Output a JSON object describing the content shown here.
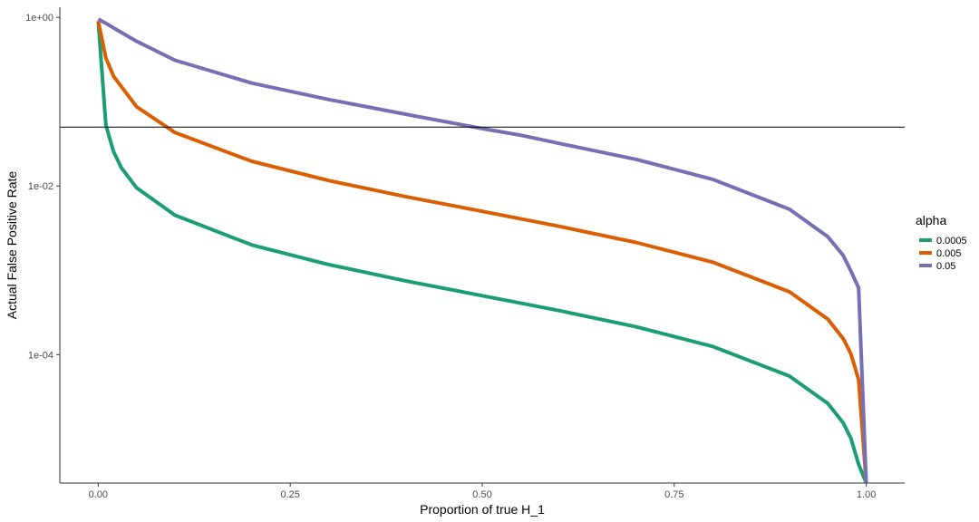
{
  "chart_data": {
    "type": "line",
    "title": "",
    "xlabel": "Proportion of true H_1",
    "ylabel": "Actual False Positive Rate",
    "x_scale": "linear",
    "y_scale": "log10",
    "xlim": [
      -0.05,
      1.05
    ],
    "ylim": [
      3e-06,
      1.0
    ],
    "x_ticks": [
      0.0,
      0.25,
      0.5,
      0.75,
      1.0
    ],
    "x_tick_labels": [
      "0.00",
      "0.25",
      "0.50",
      "0.75",
      "1.00"
    ],
    "y_ticks": [
      1.0,
      0.01,
      0.0001
    ],
    "y_tick_labels": [
      "1e+00",
      "1e-02",
      "1e-04"
    ],
    "grid": false,
    "hline": 0.05,
    "legend_title": "alpha",
    "legend_position": "right",
    "series": [
      {
        "name": "0.0005",
        "color": "#1b9e77",
        "x": [
          0,
          0.01,
          0.02,
          0.03,
          0.05,
          0.1,
          0.2,
          0.3,
          0.4,
          0.5,
          0.6,
          0.7,
          0.8,
          0.9,
          0.95,
          0.97,
          0.98,
          0.99,
          1.0
        ],
        "y": [
          0.9,
          0.053,
          0.0255,
          0.0165,
          0.0095,
          0.0045,
          0.002,
          0.00117,
          0.00075,
          0.0005,
          0.000333,
          0.000214,
          0.000125,
          5.56e-05,
          2.63e-05,
          1.55e-05,
          1.02e-05,
          5e-06,
          3e-06
        ]
      },
      {
        "name": "0.005",
        "color": "#d95f02",
        "x": [
          0,
          0.01,
          0.02,
          0.05,
          0.1,
          0.2,
          0.3,
          0.4,
          0.5,
          0.6,
          0.7,
          0.8,
          0.9,
          0.95,
          0.97,
          0.98,
          0.99,
          1.0
        ],
        "y": [
          0.9,
          0.33,
          0.2,
          0.087,
          0.043,
          0.0196,
          0.0116,
          0.0075,
          0.005,
          0.00333,
          0.00214,
          0.00125,
          0.000556,
          0.000263,
          0.000155,
          0.000102,
          5.05e-05,
          3e-06
        ]
      },
      {
        "name": "0.05",
        "color": "#7570b3",
        "x": [
          0,
          0.01,
          0.02,
          0.05,
          0.1,
          0.2,
          0.3,
          0.4,
          0.5,
          0.55,
          0.6,
          0.7,
          0.8,
          0.9,
          0.95,
          0.97,
          0.98,
          0.99,
          1.0
        ],
        "y": [
          0.95,
          0.85,
          0.75,
          0.52,
          0.31,
          0.166,
          0.106,
          0.071,
          0.048,
          0.04,
          0.032,
          0.0207,
          0.012,
          0.0053,
          0.0025,
          0.0015,
          0.00098,
          0.00062,
          3e-06
        ]
      }
    ]
  }
}
